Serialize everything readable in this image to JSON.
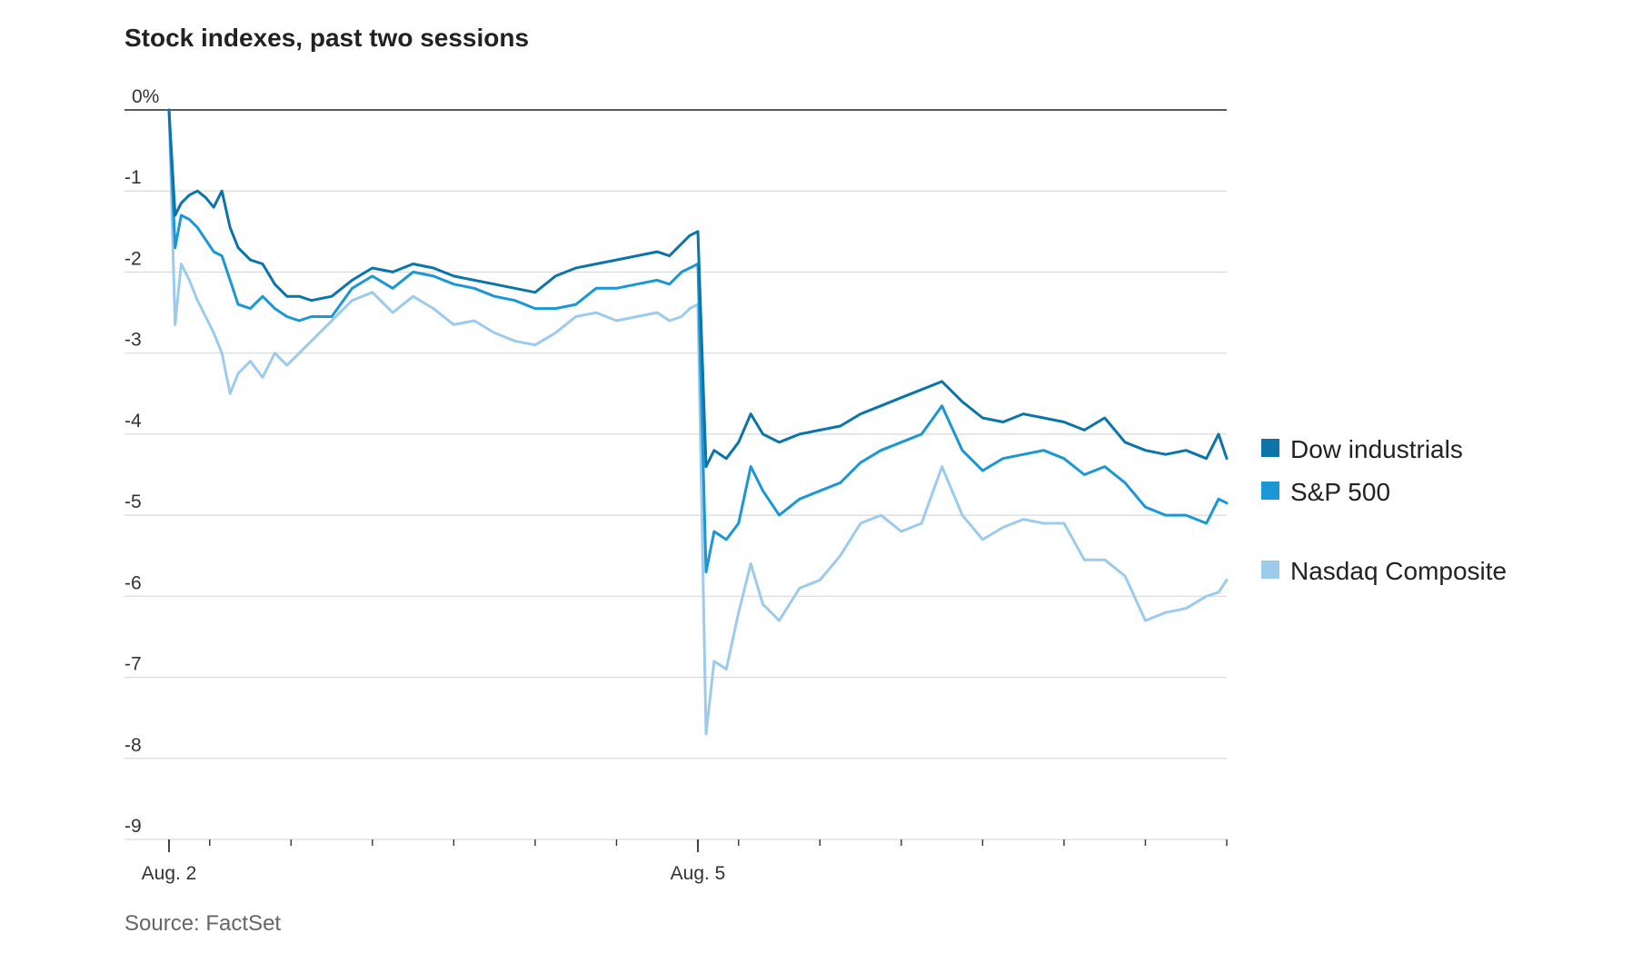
{
  "chart_data": {
    "type": "line",
    "title": "Stock indexes, past two sessions",
    "source": "Source: FactSet",
    "xlabel": "",
    "ylabel": "",
    "ylim": [
      -9,
      0
    ],
    "y_ticks": [
      {
        "value": 0,
        "label": "0%"
      },
      {
        "value": -1,
        "label": "-1"
      },
      {
        "value": -2,
        "label": "-2"
      },
      {
        "value": -3,
        "label": "-3"
      },
      {
        "value": -4,
        "label": "-4"
      },
      {
        "value": -5,
        "label": "-5"
      },
      {
        "value": -6,
        "label": "-6"
      },
      {
        "value": -7,
        "label": "-7"
      },
      {
        "value": -8,
        "label": "-8"
      },
      {
        "value": -9,
        "label": "-9"
      }
    ],
    "x_range": [
      0,
      26
    ],
    "x_ticks": [
      {
        "value": 0,
        "label": "Aug. 2"
      },
      {
        "value": 13,
        "label": "Aug. 5"
      }
    ],
    "minor_ticks": [
      0,
      1,
      3,
      5,
      7,
      9,
      11,
      13,
      14,
      16,
      18,
      20,
      22,
      24,
      26
    ],
    "legend_position": "right",
    "series": [
      {
        "name": "Dow industrials",
        "color": "#0b74a8",
        "x": [
          0,
          0.15,
          0.3,
          0.5,
          0.7,
          0.9,
          1.1,
          1.3,
          1.5,
          1.7,
          2.0,
          2.3,
          2.6,
          2.9,
          3.2,
          3.5,
          4.0,
          4.5,
          5.0,
          5.5,
          6.0,
          6.5,
          7.0,
          7.5,
          8.0,
          8.5,
          9.0,
          9.5,
          10.0,
          10.5,
          11.0,
          11.5,
          12.0,
          12.3,
          12.6,
          12.8,
          13.0,
          13.2,
          13.4,
          13.7,
          14.0,
          14.3,
          14.6,
          15.0,
          15.5,
          16.0,
          16.5,
          17.0,
          17.5,
          18.0,
          18.5,
          19.0,
          19.5,
          20.0,
          20.5,
          21.0,
          21.5,
          22.0,
          22.5,
          23.0,
          23.5,
          24.0,
          24.5,
          25.0,
          25.5,
          25.8,
          26.0
        ],
        "y": [
          0,
          -1.3,
          -1.15,
          -1.05,
          -1.0,
          -1.08,
          -1.2,
          -1.0,
          -1.45,
          -1.7,
          -1.85,
          -1.9,
          -2.15,
          -2.3,
          -2.3,
          -2.35,
          -2.3,
          -2.1,
          -1.95,
          -2.0,
          -1.9,
          -1.95,
          -2.05,
          -2.1,
          -2.15,
          -2.2,
          -2.25,
          -2.05,
          -1.95,
          -1.9,
          -1.85,
          -1.8,
          -1.75,
          -1.8,
          -1.65,
          -1.55,
          -1.5,
          -4.4,
          -4.2,
          -4.3,
          -4.1,
          -3.75,
          -4.0,
          -4.1,
          -4.0,
          -3.95,
          -3.9,
          -3.75,
          -3.65,
          -3.55,
          -3.45,
          -3.35,
          -3.6,
          -3.8,
          -3.85,
          -3.75,
          -3.8,
          -3.85,
          -3.95,
          -3.8,
          -4.1,
          -4.2,
          -4.25,
          -4.2,
          -4.3,
          -4.0,
          -4.3
        ]
      },
      {
        "name": "S&P 500",
        "color": "#1a97d5",
        "x": [
          0,
          0.15,
          0.3,
          0.5,
          0.7,
          0.9,
          1.1,
          1.3,
          1.5,
          1.7,
          2.0,
          2.3,
          2.6,
          2.9,
          3.2,
          3.5,
          4.0,
          4.5,
          5.0,
          5.5,
          6.0,
          6.5,
          7.0,
          7.5,
          8.0,
          8.5,
          9.0,
          9.5,
          10.0,
          10.5,
          11.0,
          11.5,
          12.0,
          12.3,
          12.6,
          12.8,
          13.0,
          13.2,
          13.4,
          13.7,
          14.0,
          14.3,
          14.6,
          15.0,
          15.5,
          16.0,
          16.5,
          17.0,
          17.5,
          18.0,
          18.5,
          19.0,
          19.5,
          20.0,
          20.5,
          21.0,
          21.5,
          22.0,
          22.5,
          23.0,
          23.5,
          24.0,
          24.5,
          25.0,
          25.5,
          25.8,
          26.0
        ],
        "y": [
          0,
          -1.7,
          -1.3,
          -1.35,
          -1.45,
          -1.6,
          -1.75,
          -1.8,
          -2.1,
          -2.4,
          -2.45,
          -2.3,
          -2.45,
          -2.55,
          -2.6,
          -2.55,
          -2.55,
          -2.2,
          -2.05,
          -2.2,
          -2.0,
          -2.05,
          -2.15,
          -2.2,
          -2.3,
          -2.35,
          -2.45,
          -2.45,
          -2.4,
          -2.2,
          -2.2,
          -2.15,
          -2.1,
          -2.15,
          -2.0,
          -1.95,
          -1.9,
          -5.7,
          -5.2,
          -5.3,
          -5.1,
          -4.4,
          -4.7,
          -5.0,
          -4.8,
          -4.7,
          -4.6,
          -4.35,
          -4.2,
          -4.1,
          -4.0,
          -3.65,
          -4.2,
          -4.45,
          -4.3,
          -4.25,
          -4.2,
          -4.3,
          -4.5,
          -4.4,
          -4.6,
          -4.9,
          -5.0,
          -5.0,
          -5.1,
          -4.8,
          -4.85
        ]
      },
      {
        "name": "Nasdaq Composite",
        "color": "#9ccbeb",
        "x": [
          0,
          0.15,
          0.3,
          0.5,
          0.7,
          0.9,
          1.1,
          1.3,
          1.5,
          1.7,
          2.0,
          2.3,
          2.6,
          2.9,
          3.2,
          3.5,
          4.0,
          4.5,
          5.0,
          5.5,
          6.0,
          6.5,
          7.0,
          7.5,
          8.0,
          8.5,
          9.0,
          9.5,
          10.0,
          10.5,
          11.0,
          11.5,
          12.0,
          12.3,
          12.6,
          12.8,
          13.0,
          13.2,
          13.4,
          13.7,
          14.0,
          14.3,
          14.6,
          15.0,
          15.5,
          16.0,
          16.5,
          17.0,
          17.5,
          18.0,
          18.5,
          19.0,
          19.5,
          20.0,
          20.5,
          21.0,
          21.5,
          22.0,
          22.5,
          23.0,
          23.5,
          24.0,
          24.5,
          25.0,
          25.5,
          25.8,
          26.0
        ],
        "y": [
          0,
          -2.65,
          -1.9,
          -2.1,
          -2.35,
          -2.55,
          -2.75,
          -3.0,
          -3.5,
          -3.25,
          -3.1,
          -3.3,
          -3.0,
          -3.15,
          -3.0,
          -2.85,
          -2.6,
          -2.35,
          -2.25,
          -2.5,
          -2.3,
          -2.45,
          -2.65,
          -2.6,
          -2.75,
          -2.85,
          -2.9,
          -2.75,
          -2.55,
          -2.5,
          -2.6,
          -2.55,
          -2.5,
          -2.6,
          -2.55,
          -2.45,
          -2.4,
          -7.7,
          -6.8,
          -6.9,
          -6.2,
          -5.6,
          -6.1,
          -6.3,
          -5.9,
          -5.8,
          -5.5,
          -5.1,
          -5.0,
          -5.2,
          -5.1,
          -4.4,
          -5.0,
          -5.3,
          -5.15,
          -5.05,
          -5.1,
          -5.1,
          -5.55,
          -5.55,
          -5.75,
          -6.3,
          -6.2,
          -6.15,
          -6.0,
          -5.95,
          -5.8
        ]
      }
    ]
  }
}
